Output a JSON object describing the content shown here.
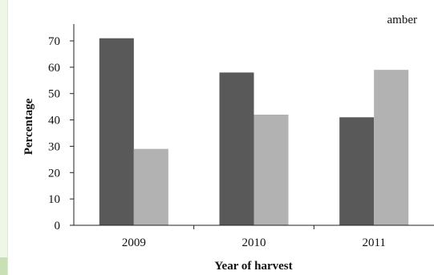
{
  "chart_data": {
    "type": "bar",
    "title": "",
    "xlabel": "Year of harvest",
    "ylabel": "Percentage",
    "categories": [
      "2009",
      "2010",
      "2011"
    ],
    "series": [
      {
        "values": [
          71,
          58,
          41
        ],
        "color": "#595959"
      },
      {
        "values": [
          29,
          42,
          59
        ],
        "color": "#b2b2b2"
      }
    ],
    "ylim": [
      0,
      70
    ],
    "yticks": [
      "0",
      "10",
      "20",
      "30",
      "40",
      "50",
      "60",
      "70"
    ],
    "legend_fragment": "amber",
    "grid": false
  }
}
